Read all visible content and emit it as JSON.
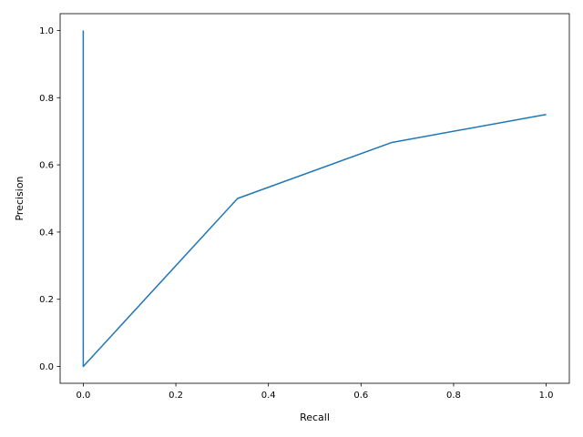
{
  "chart_data": {
    "type": "line",
    "x_label": "Recall",
    "y_label": "Precision",
    "series": [
      {
        "color": "#1f77b4",
        "x": [
          1.0,
          0.6667,
          0.3333,
          0.0,
          0.0
        ],
        "values": [
          0.75,
          0.6667,
          0.5,
          0.0,
          1.0
        ]
      }
    ],
    "xlim": [
      -0.05,
      1.05
    ],
    "ylim": [
      -0.05,
      1.05
    ],
    "xticks": [
      {
        "value": 0,
        "label": "0.0"
      },
      0.2,
      0.4,
      0.6,
      0.8,
      {
        "value": 1,
        "label": "1.0"
      }
    ],
    "yticks": [
      {
        "value": 0,
        "label": "0.0"
      },
      0.2,
      0.4,
      0.6,
      0.8,
      {
        "value": 1,
        "label": "1.0"
      }
    ],
    "grid": false
  }
}
